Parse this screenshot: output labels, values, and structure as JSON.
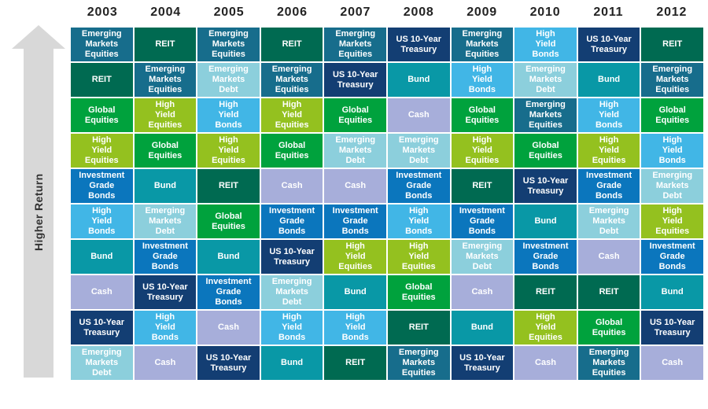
{
  "y_axis": {
    "label": "Higher Return"
  },
  "chart_data": {
    "type": "table",
    "title": "",
    "ylabel": "Higher Return",
    "layout": "cells ranked top-to-bottom = highest-to-lowest return per year column",
    "years": [
      "2003",
      "2004",
      "2005",
      "2006",
      "2007",
      "2008",
      "2009",
      "2010",
      "2011",
      "2012"
    ],
    "assets": {
      "eme": {
        "label": "Emerging\nMarkets\nEquities",
        "color": "#176d8c"
      },
      "reit": {
        "label": "REIT",
        "color": "#006a51"
      },
      "global": {
        "label": "Global\nEquities",
        "color": "#00a23d"
      },
      "hye": {
        "label": "High\nYield\nEquities",
        "color": "#94c11f"
      },
      "igb": {
        "label": "Investment\nGrade\nBonds",
        "color": "#0b76bd"
      },
      "hyb": {
        "label": "High\nYield\nBonds",
        "color": "#41b6e6"
      },
      "bund": {
        "label": "Bund",
        "color": "#0998a6"
      },
      "cash": {
        "label": "Cash",
        "color": "#a7aeda"
      },
      "us10y": {
        "label": "US 10-Year\nTreasury",
        "color": "#133e73"
      },
      "emd": {
        "label": "Emerging\nMarkets\nDebt",
        "color": "#8ccfdc"
      }
    },
    "columns": [
      {
        "year": "2003",
        "ranking": [
          "eme",
          "reit",
          "global",
          "hye",
          "igb",
          "hyb",
          "bund",
          "cash",
          "us10y",
          "emd"
        ]
      },
      {
        "year": "2004",
        "ranking": [
          "reit",
          "eme",
          "hye",
          "global",
          "bund",
          "emd",
          "igb",
          "us10y",
          "hyb",
          "cash"
        ]
      },
      {
        "year": "2005",
        "ranking": [
          "eme",
          "emd",
          "hyb",
          "hye",
          "reit",
          "global",
          "bund",
          "igb",
          "cash",
          "us10y"
        ]
      },
      {
        "year": "2006",
        "ranking": [
          "reit",
          "eme",
          "hye",
          "global",
          "cash",
          "igb",
          "us10y",
          "emd",
          "hyb",
          "bund"
        ]
      },
      {
        "year": "2007",
        "ranking": [
          "eme",
          "us10y",
          "global",
          "emd",
          "cash",
          "igb",
          "hye",
          "bund",
          "hyb",
          "reit"
        ]
      },
      {
        "year": "2008",
        "ranking": [
          "us10y",
          "bund",
          "cash",
          "emd",
          "igb",
          "hyb",
          "hye",
          "global",
          "reit",
          "eme"
        ]
      },
      {
        "year": "2009",
        "ranking": [
          "eme",
          "hyb",
          "global",
          "hye",
          "reit",
          "igb",
          "emd",
          "cash",
          "bund",
          "us10y"
        ]
      },
      {
        "year": "2010",
        "ranking": [
          "hyb",
          "emd",
          "eme",
          "global",
          "us10y",
          "bund",
          "igb",
          "reit",
          "hye",
          "cash"
        ]
      },
      {
        "year": "2011",
        "ranking": [
          "us10y",
          "bund",
          "hyb",
          "hye",
          "igb",
          "emd",
          "cash",
          "reit",
          "global",
          "eme"
        ]
      },
      {
        "year": "2012",
        "ranking": [
          "reit",
          "eme",
          "global",
          "hyb",
          "emd",
          "hye",
          "igb",
          "bund",
          "us10y",
          "cash"
        ]
      }
    ],
    "colors": {
      "arrow": "#d8d8d8",
      "header_text": "#232323",
      "cell_text": "#ffffff"
    }
  }
}
